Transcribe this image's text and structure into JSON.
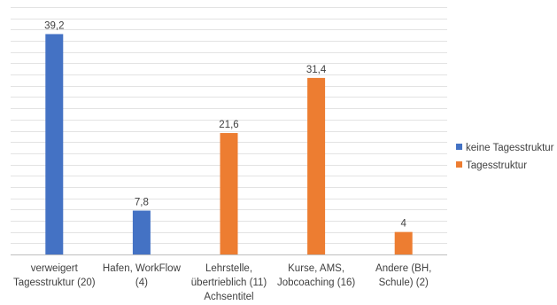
{
  "chart_data": {
    "type": "bar",
    "categories": [
      [
        "verweigert",
        "Tagesstruktur (20)"
      ],
      [
        "Hafen, WorkFlow",
        "(4)"
      ],
      [
        "Lehrstelle,",
        "übertrieblich (11)"
      ],
      [
        "Kurse, AMS,",
        "Jobcoaching (16)"
      ],
      [
        "Andere (BH,",
        "Schule) (2)"
      ]
    ],
    "series": [
      {
        "name": "keine Tagesstruktur",
        "color": "#4472C4",
        "values": [
          39.2,
          7.8,
          null,
          null,
          null
        ]
      },
      {
        "name": "Tagesstruktur",
        "color": "#ED7D31",
        "values": [
          null,
          null,
          21.6,
          31.4,
          4
        ]
      }
    ],
    "data_labels": [
      "39,2",
      "7,8",
      "21,6",
      "31,4",
      "4"
    ],
    "xlabel": "Achsentitel",
    "ylabel": "",
    "ylim": [
      0,
      44
    ],
    "grid": true,
    "grid_step": 2,
    "legend_position": "right"
  }
}
